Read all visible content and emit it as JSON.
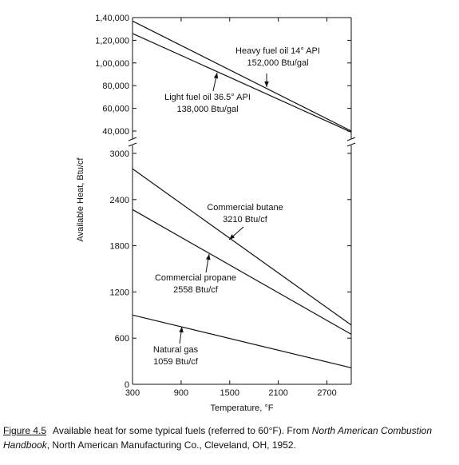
{
  "chart_data": {
    "type": "line",
    "xlabel": "Temperature, °F",
    "ylabel": "Available Heat, Btu/cf",
    "x_ticks": [
      "300",
      "900",
      "1500",
      "2100",
      "2700"
    ],
    "xlim": [
      300,
      3000
    ],
    "upper_panel": {
      "y_ticks": [
        "1,40,000",
        "1,20,000",
        "1,00,000",
        "80,000",
        "60,000",
        "40,000"
      ],
      "ylim": [
        40000,
        140000
      ]
    },
    "lower_panel": {
      "y_ticks": [
        "3000",
        "2400",
        "1800",
        "1200",
        "600",
        "0"
      ],
      "ylim": [
        0,
        3000
      ]
    },
    "series": [
      {
        "panel": "upper",
        "label_lines": [
          "Heavy fuel oil 14° API",
          "152,000 Btu/gal"
        ],
        "x": [
          300,
          3000
        ],
        "y": [
          137000,
          40000
        ]
      },
      {
        "panel": "upper",
        "label_lines": [
          "Light fuel oil 36.5° API",
          "138,000 Btu/gal"
        ],
        "x": [
          300,
          3000
        ],
        "y": [
          126000,
          39000
        ]
      },
      {
        "panel": "lower",
        "label_lines": [
          "Commercial butane",
          "3210 Btu/cf"
        ],
        "x": [
          300,
          3000
        ],
        "y": [
          2800,
          770
        ]
      },
      {
        "panel": "lower",
        "label_lines": [
          "Commercial propane",
          "2558 Btu/cf"
        ],
        "x": [
          300,
          3000
        ],
        "y": [
          2270,
          650
        ]
      },
      {
        "panel": "lower",
        "label_lines": [
          "Natural gas",
          "1059 Btu/cf"
        ],
        "x": [
          300,
          3000
        ],
        "y": [
          900,
          215
        ]
      }
    ],
    "grid": false
  },
  "caption": {
    "label": "Figure 4.5",
    "text_1": "Available heat for some typical fuels (referred to 60°F). From ",
    "source_italic": "North American Combustion Handbook",
    "text_2": ", North American Manufacturing Co., Cleveland, OH, 1952."
  }
}
